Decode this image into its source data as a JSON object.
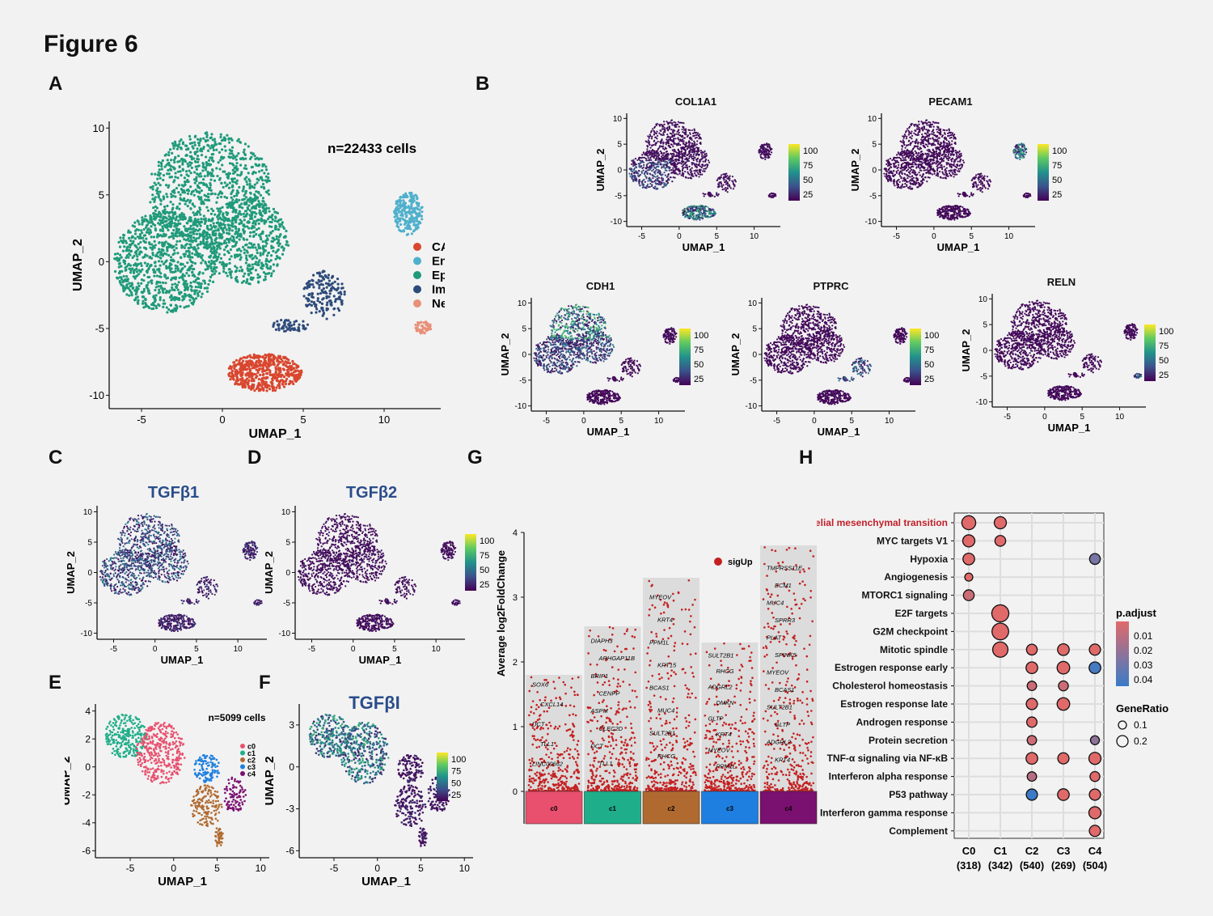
{
  "figure_title": "Figure 6",
  "panel_labels": [
    "A",
    "B",
    "C",
    "D",
    "E",
    "F",
    "G",
    "H"
  ],
  "colors": {
    "CAF": "#d9462e",
    "Endothelia": "#4fb0cc",
    "Epithelia": "#1f9a7a",
    "Immune": "#2d4b7a",
    "Neuron": "#e8907a",
    "c0": "#e8506e",
    "c1": "#1fae8a",
    "c2": "#b06a30",
    "c3": "#1e7fe0",
    "c4": "#7a1070",
    "sigUp": "#c42020",
    "viridis": [
      "#440154",
      "#3b528b",
      "#21918c",
      "#5ec962",
      "#fde725"
    ],
    "padj_low": "#e06a6a",
    "padj_high": "#3a7bc8"
  },
  "chart_data": [
    {
      "panel": "A",
      "type": "scatter",
      "title": "n=22433 cells",
      "xlabel": "UMAP_1",
      "ylabel": "UMAP_2",
      "xticks": [
        -5,
        0,
        5,
        10
      ],
      "yticks": [
        10,
        5,
        0,
        -5,
        -10
      ],
      "xlim": [
        -7,
        13.5
      ],
      "ylim": [
        -11,
        10.5
      ],
      "series": [
        {
          "name": "CAF",
          "color": "#d9462e"
        },
        {
          "name": "Endothelia",
          "color": "#4fb0cc"
        },
        {
          "name": "Epithelia",
          "color": "#1f9a7a"
        },
        {
          "name": "Immune",
          "color": "#2d4b7a"
        },
        {
          "name": "Neuron",
          "color": "#e8907a"
        }
      ]
    },
    {
      "panel": "B",
      "type": "scatter",
      "title": "COL1A1",
      "xlabel": "UMAP_1",
      "ylabel": "UMAP_2",
      "xticks": [
        -5,
        0,
        5,
        10
      ],
      "yticks": [
        10,
        5,
        0,
        -5,
        -10
      ],
      "colorbar": [
        "100",
        "75",
        "50",
        "25"
      ]
    },
    {
      "panel": "B",
      "type": "scatter",
      "title": "PECAM1",
      "xlabel": "UMAP_1",
      "ylabel": "UMAP_2",
      "xticks": [
        -5,
        0,
        5,
        10
      ],
      "yticks": [
        10,
        5,
        0,
        -5,
        -10
      ],
      "colorbar": [
        "100",
        "75",
        "50",
        "25"
      ]
    },
    {
      "panel": "B",
      "type": "scatter",
      "title": "CDH1",
      "xlabel": "UMAP_1",
      "ylabel": "UMAP_2",
      "xticks": [
        -5,
        0,
        5,
        10
      ],
      "yticks": [
        10,
        5,
        0,
        -5,
        -10
      ],
      "colorbar": [
        "100",
        "75",
        "50",
        "25"
      ]
    },
    {
      "panel": "B",
      "type": "scatter",
      "title": "PTPRC",
      "xlabel": "UMAP_1",
      "ylabel": "UMAP_2",
      "xticks": [
        -5,
        0,
        5,
        10
      ],
      "yticks": [
        10,
        5,
        0,
        -5,
        -10
      ],
      "colorbar": [
        "100",
        "75",
        "50",
        "25"
      ]
    },
    {
      "panel": "B",
      "type": "scatter",
      "title": "RELN",
      "xlabel": "UMAP_1",
      "ylabel": "UMAP_2",
      "xticks": [
        -5,
        0,
        5,
        10
      ],
      "yticks": [
        10,
        5,
        0,
        -5,
        -10
      ],
      "colorbar": [
        "100",
        "75",
        "50",
        "25"
      ]
    },
    {
      "panel": "C",
      "type": "scatter",
      "title": "TGFβ1",
      "xlabel": "UMAP_1",
      "ylabel": "UMAP_2",
      "xticks": [
        -5,
        0,
        5,
        10
      ],
      "yticks": [
        10,
        5,
        0,
        -5,
        -10
      ]
    },
    {
      "panel": "D",
      "type": "scatter",
      "title": "TGFβ2",
      "xlabel": "UMAP_1",
      "ylabel": "UMAP_2",
      "xticks": [
        -5,
        0,
        5,
        10
      ],
      "yticks": [
        10,
        5,
        0,
        -5,
        -10
      ],
      "colorbar": [
        "100",
        "75",
        "50",
        "25"
      ]
    },
    {
      "panel": "E",
      "type": "scatter",
      "title": "n=5099 cells",
      "xlabel": "UMAP_1",
      "ylabel": "UMAP_2",
      "xticks": [
        -5,
        0,
        5,
        10
      ],
      "yticks": [
        4,
        2,
        0,
        -2,
        -4,
        -6
      ],
      "series": [
        {
          "name": "c0",
          "color": "#e8506e"
        },
        {
          "name": "c1",
          "color": "#1fae8a"
        },
        {
          "name": "c2",
          "color": "#b06a30"
        },
        {
          "name": "c3",
          "color": "#1e7fe0"
        },
        {
          "name": "c4",
          "color": "#7a1070"
        }
      ]
    },
    {
      "panel": "F",
      "type": "scatter",
      "title": "TGFβI",
      "xlabel": "UMAP_1",
      "ylabel": "UMAP_2",
      "xticks": [
        -5,
        0,
        5,
        10
      ],
      "yticks": [
        3,
        0,
        -3,
        -6
      ],
      "colorbar": [
        "100",
        "75",
        "50",
        "25"
      ]
    },
    {
      "panel": "G",
      "type": "scatter",
      "ylabel": "Average log2FoldChange",
      "yticks": [
        0,
        1,
        2,
        3,
        4
      ],
      "ylim": [
        0,
        4
      ],
      "legend": "sigUp",
      "categories": [
        "c0",
        "c1",
        "c2",
        "c3",
        "c4"
      ],
      "bar_max": [
        1.8,
        2.55,
        3.3,
        2.3,
        3.8
      ],
      "gene_labels": [
        [
          "SOX6",
          "CXCL14",
          "DCT",
          "TLL1",
          "LINC00662"
        ],
        [
          "DIAPH3",
          "ARHGAP11B",
          "BRIP1",
          "CENPP",
          "ASPM",
          "CLEC2D",
          "DCT",
          "TLL1"
        ],
        [
          "MYEOV",
          "KRT4",
          "PPM1L",
          "KRT15",
          "BCAS1",
          "MUC4",
          "SULT2B1",
          "RHCG"
        ],
        [
          "SULT2B1",
          "RHCG",
          "ADGRL2",
          "DMKN",
          "GLTP",
          "KRT4",
          "MYEOV",
          "PPM1L"
        ],
        [
          "TMPRSS11E",
          "ECM1",
          "MUC4",
          "SPRR3",
          "PLAT",
          "SPINK5",
          "MYEOV",
          "BCAS1",
          "SULT2B1",
          "GLTP",
          "ADGRL2",
          "KRT4"
        ]
      ]
    },
    {
      "panel": "H",
      "type": "scatter",
      "categories": [
        "C0\n(318)",
        "C1\n(342)",
        "C2\n(540)",
        "C3\n(269)",
        "C4\n(504)"
      ],
      "cat_names": [
        "C0",
        "C1",
        "C2",
        "C3",
        "C4"
      ],
      "cat_counts": [
        "(318)",
        "(342)",
        "(540)",
        "(269)",
        "(504)"
      ],
      "pathways": [
        "Epithelial mesenchymal transition",
        "MYC targets V1",
        "Hypoxia",
        "Angiogenesis",
        "MTORC1 signaling",
        "E2F targets",
        "G2M checkpoint",
        "Mitotic spindle",
        "Estrogen response early",
        "Cholesterol homeostasis",
        "Estrogen response late",
        "Androgen response",
        "Protein secretion",
        "TNF-α signaling via NF-κB",
        "Interferon alpha response",
        "P53 pathway",
        "Interferon gamma response",
        "Complement"
      ],
      "legend_padj_title": "p.adjust",
      "legend_padj_ticks": [
        "0.01",
        "0.02",
        "0.03",
        "0.04"
      ],
      "legend_gr_title": "GeneRatio",
      "legend_gr_ticks": [
        "0.1",
        "0.2"
      ],
      "points": [
        {
          "p": 0,
          "c": 0,
          "gr": 0.2,
          "padj": 0.005
        },
        {
          "p": 0,
          "c": 1,
          "gr": 0.16,
          "padj": 0.005
        },
        {
          "p": 1,
          "c": 0,
          "gr": 0.16,
          "padj": 0.005
        },
        {
          "p": 1,
          "c": 1,
          "gr": 0.13,
          "padj": 0.005
        },
        {
          "p": 2,
          "c": 0,
          "gr": 0.15,
          "padj": 0.005
        },
        {
          "p": 2,
          "c": 4,
          "gr": 0.13,
          "padj": 0.03
        },
        {
          "p": 3,
          "c": 0,
          "gr": 0.07,
          "padj": 0.005
        },
        {
          "p": 4,
          "c": 0,
          "gr": 0.13,
          "padj": 0.01
        },
        {
          "p": 5,
          "c": 1,
          "gr": 0.27,
          "padj": 0.005
        },
        {
          "p": 6,
          "c": 1,
          "gr": 0.26,
          "padj": 0.005
        },
        {
          "p": 7,
          "c": 1,
          "gr": 0.23,
          "padj": 0.005
        },
        {
          "p": 7,
          "c": 2,
          "gr": 0.13,
          "padj": 0.005
        },
        {
          "p": 7,
          "c": 3,
          "gr": 0.15,
          "padj": 0.005
        },
        {
          "p": 7,
          "c": 4,
          "gr": 0.14,
          "padj": 0.005
        },
        {
          "p": 8,
          "c": 2,
          "gr": 0.15,
          "padj": 0.005
        },
        {
          "p": 8,
          "c": 3,
          "gr": 0.17,
          "padj": 0.005
        },
        {
          "p": 8,
          "c": 4,
          "gr": 0.15,
          "padj": 0.042
        },
        {
          "p": 9,
          "c": 2,
          "gr": 0.1,
          "padj": 0.01
        },
        {
          "p": 9,
          "c": 3,
          "gr": 0.11,
          "padj": 0.01
        },
        {
          "p": 10,
          "c": 2,
          "gr": 0.14,
          "padj": 0.005
        },
        {
          "p": 10,
          "c": 3,
          "gr": 0.17,
          "padj": 0.005
        },
        {
          "p": 11,
          "c": 2,
          "gr": 0.12,
          "padj": 0.005
        },
        {
          "p": 12,
          "c": 2,
          "gr": 0.1,
          "padj": 0.01
        },
        {
          "p": 12,
          "c": 4,
          "gr": 0.09,
          "padj": 0.025
        },
        {
          "p": 13,
          "c": 2,
          "gr": 0.15,
          "padj": 0.005
        },
        {
          "p": 13,
          "c": 3,
          "gr": 0.14,
          "padj": 0.005
        },
        {
          "p": 13,
          "c": 4,
          "gr": 0.16,
          "padj": 0.005
        },
        {
          "p": 14,
          "c": 2,
          "gr": 0.1,
          "padj": 0.015
        },
        {
          "p": 14,
          "c": 4,
          "gr": 0.11,
          "padj": 0.005
        },
        {
          "p": 15,
          "c": 2,
          "gr": 0.14,
          "padj": 0.045
        },
        {
          "p": 15,
          "c": 3,
          "gr": 0.15,
          "padj": 0.005
        },
        {
          "p": 15,
          "c": 4,
          "gr": 0.14,
          "padj": 0.005
        },
        {
          "p": 16,
          "c": 4,
          "gr": 0.16,
          "padj": 0.005
        },
        {
          "p": 17,
          "c": 4,
          "gr": 0.14,
          "padj": 0.005
        }
      ]
    }
  ]
}
